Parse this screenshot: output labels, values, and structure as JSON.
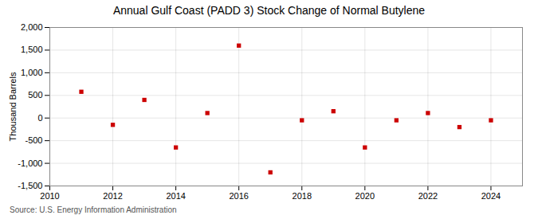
{
  "chart_data": {
    "type": "scatter",
    "title": "Annual Gulf Coast (PADD 3) Stock Change of Normal Butylene",
    "ylabel": "Thousand Barrels",
    "source": "Source: U.S. Energy Information Administration",
    "x": [
      2011,
      2012,
      2013,
      2014,
      2015,
      2016,
      2017,
      2018,
      2019,
      2020,
      2021,
      2022,
      2023,
      2024
    ],
    "values": [
      580,
      -150,
      400,
      -650,
      110,
      1600,
      -1200,
      -50,
      150,
      -650,
      -50,
      110,
      -200,
      -50
    ],
    "color": "#cc0000",
    "marker": "square",
    "xlim": [
      2010,
      2025
    ],
    "xticks": [
      2010,
      2012,
      2014,
      2016,
      2018,
      2020,
      2022,
      2024
    ],
    "ylim": [
      -1500,
      2000
    ],
    "yticks": [
      {
        "value": -1500,
        "label": "-1,500"
      },
      {
        "value": -1000,
        "label": "-1,000"
      },
      -500,
      0,
      500,
      {
        "value": 1000,
        "label": "1,000"
      },
      {
        "value": 1500,
        "label": "1,500"
      },
      {
        "value": 2000,
        "label": "2,000"
      }
    ],
    "grid": true
  }
}
